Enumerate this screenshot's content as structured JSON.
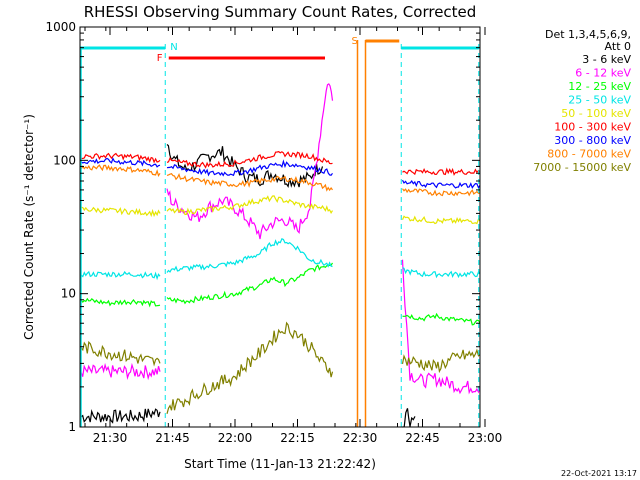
{
  "chart_data": {
    "type": "line",
    "title": "RHESSI Observing Summary Count Rates, Corrected",
    "xlabel": "Start Time (11-Jan-13 21:22:42)",
    "ylabel": "Corrected Count Rate (s⁻¹ detector⁻¹)",
    "y_scale": "log",
    "ylim": [
      1,
      1000
    ],
    "xlim_minutes": [
      21.38,
      22.98
    ],
    "x_ticks": [
      {
        "label": "21:30",
        "t": 21.5
      },
      {
        "label": "21:45",
        "t": 21.75
      },
      {
        "label": "22:00",
        "t": 22.0
      },
      {
        "label": "22:15",
        "t": 22.25
      },
      {
        "label": "22:30",
        "t": 22.5
      },
      {
        "label": "22:45",
        "t": 22.75
      },
      {
        "label": "23:00",
        "t": 23.0
      }
    ],
    "y_ticks": [
      {
        "label": "1",
        "v": 1
      },
      {
        "label": "10",
        "v": 10
      },
      {
        "label": "100",
        "v": 100
      },
      {
        "label": "1000",
        "v": 1000
      }
    ],
    "legend_header": [
      "Det 1,3,4,5,6,9,",
      "Att 0"
    ],
    "legend_position": "top-right",
    "footer_stamp": "22-Oct-2021 13:17",
    "gaps": [
      [
        21.705,
        21.725
      ],
      [
        22.49,
        22.665
      ]
    ],
    "markers": [
      {
        "label": "N",
        "color": "#00e5e5"
      },
      {
        "label": "F",
        "color": "#ff0000"
      },
      {
        "label": "S",
        "color": "#ff8000"
      }
    ],
    "series": [
      {
        "name": "3 - 6 keV",
        "color": "#000000",
        "segments": [
          {
            "t": [
              21.385,
              21.6,
              21.7
            ],
            "v": [
              1.2,
              1.2,
              1.3
            ]
          },
          {
            "t": [
              21.728,
              21.75,
              21.8,
              21.85,
              21.9,
              21.95,
              22.0,
              22.05,
              22.1,
              22.15,
              22.2,
              22.25,
              22.3,
              22.32,
              22.35
            ],
            "v": [
              140,
              105,
              85,
              95,
              110,
              115,
              90,
              75,
              72,
              80,
              72,
              70,
              74,
              85,
              90
            ]
          },
          {
            "t": [
              22.67,
              22.69,
              22.7,
              22.72
            ],
            "v": [
              1.0,
              1.4,
              1.0,
              1.2
            ]
          }
        ]
      },
      {
        "name": "6 - 12 keV",
        "color": "#ff00ff",
        "segments": [
          {
            "t": [
              21.385,
              21.6,
              21.7
            ],
            "v": [
              2.6,
              2.6,
              2.6
            ]
          },
          {
            "t": [
              21.728,
              21.75,
              21.8,
              21.85,
              21.9,
              21.95,
              22.0,
              22.05,
              22.1,
              22.15,
              22.2,
              22.25,
              22.3,
              22.33,
              22.36,
              22.375,
              22.39
            ],
            "v": [
              60,
              48,
              42,
              37,
              45,
              50,
              44,
              36,
              28,
              34,
              36,
              30,
              45,
              110,
              300,
              400,
              280
            ]
          },
          {
            "t": [
              22.67,
              22.68,
              22.7,
              22.75,
              22.8,
              22.9,
              22.98
            ],
            "v": [
              18,
              9,
              2.5,
              2.2,
              2.3,
              2.0,
              2.0
            ]
          }
        ]
      },
      {
        "name": "12 - 25 keV",
        "color": "#00ff00",
        "segments": [
          {
            "t": [
              21.385,
              21.5,
              21.6,
              21.7
            ],
            "v": [
              9,
              8.5,
              8.8,
              8.2
            ]
          },
          {
            "t": [
              21.728,
              21.8,
              21.9,
              22.0,
              22.1,
              22.15,
              22.2,
              22.25,
              22.3,
              22.35,
              22.39
            ],
            "v": [
              9.0,
              8.8,
              9.4,
              10,
              11.5,
              13,
              12,
              13,
              15,
              16,
              17
            ]
          },
          {
            "t": [
              22.67,
              22.75,
              22.8,
              22.85,
              22.9,
              22.98
            ],
            "v": [
              7,
              6.5,
              6.8,
              6.5,
              6.3,
              6.0
            ]
          }
        ]
      },
      {
        "name": "25 - 50 keV",
        "color": "#00e5e5",
        "segments": [
          {
            "t": [
              21.385,
              21.5,
              21.6,
              21.7
            ],
            "v": [
              14,
              14,
              14,
              13.5
            ]
          },
          {
            "t": [
              21.728,
              21.8,
              21.9,
              22.0,
              22.1,
              22.15,
              22.2,
              22.25,
              22.3,
              22.35,
              22.39
            ],
            "v": [
              15,
              15.5,
              16,
              17,
              20,
              24,
              25,
              22,
              18,
              17,
              16
            ]
          },
          {
            "t": [
              22.67,
              22.75,
              22.8,
              22.9,
              22.98
            ],
            "v": [
              15,
              14,
              14,
              14,
              14
            ]
          }
        ]
      },
      {
        "name": "50 - 100 keV",
        "color": "#e5e500",
        "segments": [
          {
            "t": [
              21.385,
              21.5,
              21.6,
              21.7
            ],
            "v": [
              43,
              42,
              41,
              40
            ]
          },
          {
            "t": [
              21.728,
              21.8,
              21.9,
              22.0,
              22.05,
              22.1,
              22.15,
              22.2,
              22.25,
              22.3,
              22.35,
              22.39
            ],
            "v": [
              42,
              41,
              43,
              45,
              48,
              50,
              52,
              50,
              47,
              45,
              44,
              42
            ]
          },
          {
            "t": [
              22.67,
              22.75,
              22.8,
              22.9,
              22.98
            ],
            "v": [
              37,
              36,
              35,
              35,
              35
            ]
          }
        ]
      },
      {
        "name": "100 - 300 keV",
        "color": "#ff0000",
        "segments": [
          {
            "t": [
              21.385,
              21.5,
              21.6,
              21.7
            ],
            "v": [
              107,
              108,
              106,
              100
            ]
          },
          {
            "t": [
              21.728,
              21.8,
              21.9,
              22.0,
              22.05,
              22.1,
              22.15,
              22.2,
              22.25,
              22.3,
              22.35,
              22.39
            ],
            "v": [
              100,
              95,
              92,
              95,
              100,
              105,
              110,
              112,
              110,
              108,
              100,
              95
            ]
          },
          {
            "t": [
              22.67,
              22.75,
              22.8,
              22.9,
              22.98
            ],
            "v": [
              83,
              82,
              82,
              82,
              82
            ]
          }
        ]
      },
      {
        "name": "300 - 800 keV",
        "color": "#0000ff",
        "segments": [
          {
            "t": [
              21.385,
              21.5,
              21.6,
              21.7
            ],
            "v": [
              98,
              99,
              96,
              92
            ]
          },
          {
            "t": [
              21.728,
              21.8,
              21.9,
              22.0,
              22.05,
              22.1,
              22.15,
              22.2,
              22.25,
              22.3,
              22.35,
              22.39
            ],
            "v": [
              90,
              86,
              80,
              80,
              83,
              88,
              92,
              94,
              92,
              88,
              84,
              80
            ]
          },
          {
            "t": [
              22.67,
              22.75,
              22.8,
              22.9,
              22.98
            ],
            "v": [
              68,
              66,
              65,
              65,
              65
            ]
          }
        ]
      },
      {
        "name": "800 - 7000 keV",
        "color": "#ff8000",
        "segments": [
          {
            "t": [
              21.385,
              21.5,
              21.6,
              21.7
            ],
            "v": [
              88,
              88,
              85,
              80
            ]
          },
          {
            "t": [
              21.728,
              21.8,
              21.9,
              22.0,
              22.05,
              22.1,
              22.15,
              22.2,
              22.25,
              22.3,
              22.35,
              22.39
            ],
            "v": [
              78,
              73,
              68,
              66,
              67,
              70,
              72,
              73,
              71,
              68,
              64,
              60
            ]
          },
          {
            "t": [
              22.67,
              22.75,
              22.8,
              22.9,
              22.98
            ],
            "v": [
              60,
              58,
              57,
              57,
              57
            ]
          }
        ]
      },
      {
        "name": "7000 - 15000 keV",
        "color": "#808000",
        "segments": [
          {
            "t": [
              21.385,
              21.5,
              21.6,
              21.7
            ],
            "v": [
              4.0,
              3.6,
              3.3,
              3.0
            ]
          },
          {
            "t": [
              21.728,
              21.8,
              21.9,
              22.0,
              22.05,
              22.1,
              22.15,
              22.2,
              22.25,
              22.3,
              22.35,
              22.39
            ],
            "v": [
              1.4,
              1.6,
              2.0,
              2.4,
              3.0,
              3.6,
              4.6,
              5.6,
              5.0,
              4.0,
              3.0,
              2.6
            ]
          },
          {
            "t": [
              22.67,
              22.75,
              22.8,
              22.9,
              22.98
            ],
            "v": [
              3.2,
              3.0,
              2.8,
              3.4,
              3.5
            ]
          }
        ]
      }
    ]
  }
}
